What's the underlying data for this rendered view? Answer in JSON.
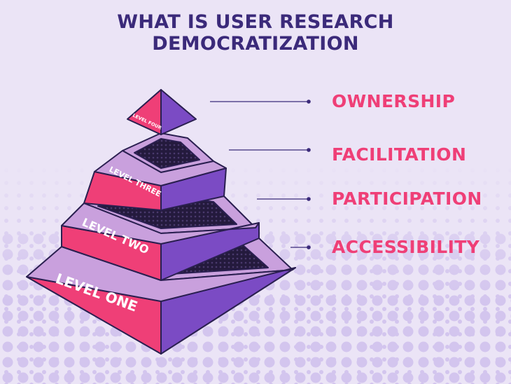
{
  "title": {
    "line1": "WHAT IS USER RESEARCH",
    "line2": "DEMOCRATIZATION"
  },
  "levels": [
    {
      "name": "LEVEL ONE",
      "concept": "ACCESSIBILITY"
    },
    {
      "name": "LEVEL TWO",
      "concept": "PARTICIPATION"
    },
    {
      "name": "LEVEL THREE",
      "concept": "FACILITATION"
    },
    {
      "name": "LEVEL FOUR",
      "concept": "OWNERSHIP"
    }
  ],
  "colors": {
    "background": "#ebe4f6",
    "title": "#3b2a7a",
    "pink_face": "#ef3f77",
    "purple_face": "#7b4bc4",
    "label": "#ef3f77",
    "dots": "#c9b8e8",
    "outline": "#2a1f50"
  }
}
